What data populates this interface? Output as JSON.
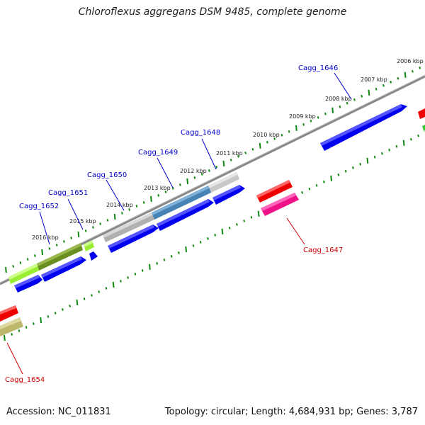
{
  "title": "Chloroflexus aggregans DSM 9485, complete genome",
  "footer": {
    "accession_label": "Accession:",
    "accession": "NC_011831",
    "topology_text": "Topology: circular; Length: 4,684,931 bp; Genes: 3,787"
  },
  "colors": {
    "background": "#ffffff",
    "backbone": "#888888",
    "tick": "#118811",
    "label_forward": "#0000cc",
    "label_reverse": "#cc0000"
  },
  "ruler": {
    "unit": "kbp",
    "labels": [
      "2006 kbp",
      "2007 kbp",
      "2008 kbp",
      "2009 kbp",
      "2010 kbp",
      "2011 kbp",
      "2012 kbp",
      "2013 kbp",
      "2014 kbp",
      "2015 kbp",
      "2016 kbp"
    ]
  },
  "genes": [
    {
      "name": "Cagg_1646",
      "strand": "forward",
      "color": "#0000ee"
    },
    {
      "name": "Cagg_1647",
      "strand": "reverse",
      "color": "#ee1188"
    },
    {
      "name": "Cagg_1648",
      "strand": "forward",
      "color": "#c8c8c8"
    },
    {
      "name": "Cagg_1649",
      "strand": "forward",
      "color": "#4682b4"
    },
    {
      "name": "Cagg_1650",
      "strand": "forward",
      "color": "#b0b0b0"
    },
    {
      "name": "Cagg_1651",
      "strand": "forward",
      "color": "#99ee33"
    },
    {
      "name": "Cagg_1652",
      "strand": "forward",
      "color": "#6b8e23"
    },
    {
      "name": "Cagg_1654",
      "strand": "reverse",
      "color": "#bdb76b"
    }
  ]
}
